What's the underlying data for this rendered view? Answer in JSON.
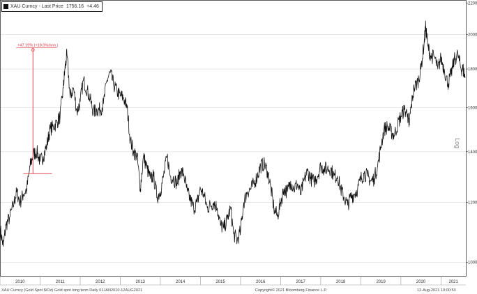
{
  "legend": {
    "series_label": "XAU Curncy - Last Price",
    "last_price": "1756.16",
    "change": "+4.46"
  },
  "annotation": {
    "label": "+47.19% (+18.0%/ann.)"
  },
  "footer": {
    "left": "XAU Curncy (Gold Spot   $/Oz) Gold spot long term  Daily 01JAN2010-12AUG2021",
    "center": "Copyright© 2021 Bloomberg Finance L.P.",
    "right": "12-Aug-2021 10:00:53"
  },
  "colors": {
    "series": "#111111",
    "annotation": "#e0303a",
    "grid": "#d9d9d9",
    "frame": "#333333"
  },
  "chart_data": {
    "type": "line",
    "xlabel": "",
    "ylabel": "Log",
    "y_scale": "log",
    "ylim": [
      960,
      2220
    ],
    "xlim": [
      2010.0,
      2021.62
    ],
    "x_ticks": [
      "2010",
      "2011",
      "2012",
      "2013",
      "2014",
      "2015",
      "2016",
      "2017",
      "2018",
      "2019",
      "2020",
      "2021"
    ],
    "y_ticks": [
      1000,
      1200,
      1400,
      1600,
      1800,
      2000,
      2200
    ],
    "grid": true,
    "legend_position": "top-left",
    "annotations": [
      {
        "label": "+47.19% (+18.0%/ann.)",
        "from": {
          "x": 2010.58,
          "y": 1310
        },
        "to": {
          "x": 2011.68,
          "y": 1920
        }
      }
    ],
    "series": [
      {
        "name": "XAU Curncy - Last Price",
        "x": [
          2010.0,
          2010.08,
          2010.15,
          2010.25,
          2010.35,
          2010.42,
          2010.5,
          2010.58,
          2010.67,
          2010.75,
          2010.83,
          2010.92,
          2011.0,
          2011.08,
          2011.17,
          2011.25,
          2011.33,
          2011.42,
          2011.5,
          2011.58,
          2011.62,
          2011.67,
          2011.75,
          2011.83,
          2011.92,
          2012.0,
          2012.08,
          2012.17,
          2012.25,
          2012.33,
          2012.42,
          2012.5,
          2012.58,
          2012.67,
          2012.75,
          2012.83,
          2012.92,
          2013.0,
          2013.08,
          2013.17,
          2013.25,
          2013.33,
          2013.42,
          2013.5,
          2013.58,
          2013.67,
          2013.75,
          2013.83,
          2013.92,
          2014.0,
          2014.08,
          2014.17,
          2014.25,
          2014.33,
          2014.42,
          2014.5,
          2014.58,
          2014.67,
          2014.75,
          2014.83,
          2014.92,
          2015.0,
          2015.08,
          2015.17,
          2015.25,
          2015.33,
          2015.42,
          2015.5,
          2015.58,
          2015.67,
          2015.75,
          2015.83,
          2015.92,
          2016.0,
          2016.08,
          2016.17,
          2016.25,
          2016.33,
          2016.42,
          2016.5,
          2016.58,
          2016.67,
          2016.75,
          2016.83,
          2016.92,
          2017.0,
          2017.08,
          2017.17,
          2017.25,
          2017.33,
          2017.42,
          2017.5,
          2017.58,
          2017.67,
          2017.75,
          2017.83,
          2017.92,
          2018.0,
          2018.08,
          2018.17,
          2018.25,
          2018.33,
          2018.42,
          2018.5,
          2018.58,
          2018.67,
          2018.75,
          2018.83,
          2018.92,
          2019.0,
          2019.08,
          2019.17,
          2019.25,
          2019.33,
          2019.42,
          2019.5,
          2019.58,
          2019.67,
          2019.75,
          2019.83,
          2019.92,
          2020.0,
          2020.08,
          2020.17,
          2020.2,
          2020.25,
          2020.33,
          2020.42,
          2020.5,
          2020.58,
          2020.62,
          2020.67,
          2020.75,
          2020.83,
          2020.92,
          2021.0,
          2021.08,
          2021.17,
          2021.25,
          2021.33,
          2021.42,
          2021.5,
          2021.55,
          2021.6
        ],
        "values": [
          1110,
          1050,
          1120,
          1150,
          1200,
          1240,
          1200,
          1230,
          1250,
          1340,
          1390,
          1400,
          1360,
          1380,
          1430,
          1500,
          1510,
          1530,
          1560,
          1700,
          1800,
          1880,
          1650,
          1700,
          1580,
          1630,
          1740,
          1690,
          1640,
          1580,
          1590,
          1590,
          1620,
          1740,
          1780,
          1720,
          1680,
          1660,
          1650,
          1600,
          1450,
          1400,
          1380,
          1250,
          1380,
          1330,
          1290,
          1300,
          1220,
          1240,
          1300,
          1380,
          1300,
          1290,
          1270,
          1320,
          1310,
          1240,
          1210,
          1180,
          1200,
          1250,
          1230,
          1180,
          1190,
          1200,
          1180,
          1120,
          1110,
          1140,
          1180,
          1090,
          1070,
          1100,
          1200,
          1240,
          1250,
          1270,
          1300,
          1340,
          1350,
          1320,
          1260,
          1180,
          1150,
          1200,
          1250,
          1240,
          1280,
          1250,
          1270,
          1230,
          1280,
          1320,
          1290,
          1280,
          1300,
          1340,
          1330,
          1330,
          1330,
          1300,
          1300,
          1250,
          1220,
          1190,
          1220,
          1230,
          1250,
          1290,
          1310,
          1300,
          1280,
          1290,
          1340,
          1420,
          1500,
          1510,
          1490,
          1470,
          1520,
          1560,
          1590,
          1570,
          1510,
          1600,
          1700,
          1730,
          1800,
          1950,
          2050,
          1930,
          1870,
          1870,
          1800,
          1860,
          1800,
          1720,
          1770,
          1850,
          1880,
          1800,
          1800,
          1752
        ]
      }
    ]
  }
}
